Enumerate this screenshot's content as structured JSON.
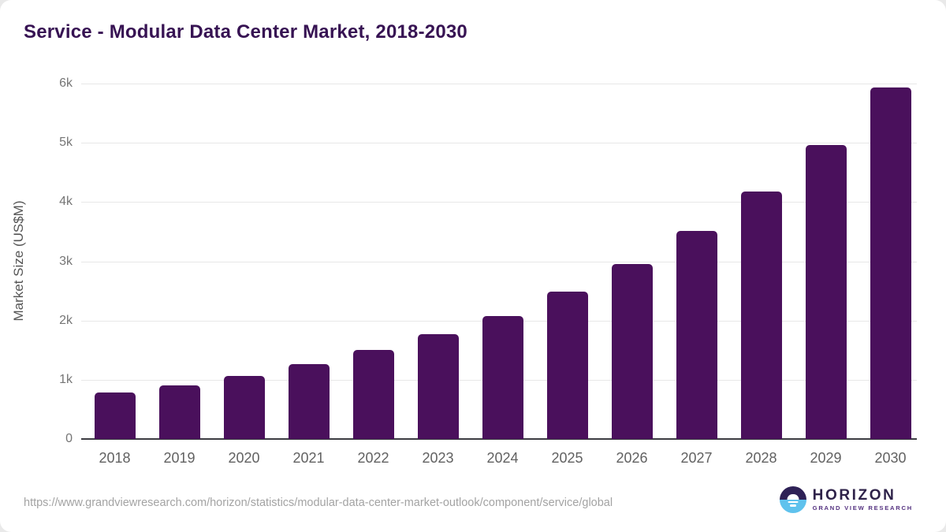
{
  "page": {
    "background": "#ffffff",
    "accent_color": "#4a105c",
    "title_color": "#371353"
  },
  "chart_data": {
    "type": "bar",
    "title": "Service - Modular Data Center Market, 2018-2030",
    "xlabel": "",
    "ylabel": "Market Size (US$M)",
    "categories": [
      "2018",
      "2019",
      "2020",
      "2021",
      "2022",
      "2023",
      "2024",
      "2025",
      "2026",
      "2027",
      "2028",
      "2029",
      "2030"
    ],
    "values": [
      780,
      900,
      1060,
      1260,
      1500,
      1770,
      2080,
      2490,
      2950,
      3510,
      4180,
      4960,
      5930
    ],
    "ylim": [
      0,
      6000
    ],
    "ytick_interval": 1000,
    "yticks": [
      {
        "value": 0,
        "label": "0"
      },
      {
        "value": 1000,
        "label": "1k"
      },
      {
        "value": 2000,
        "label": "2k"
      },
      {
        "value": 3000,
        "label": "3k"
      },
      {
        "value": 4000,
        "label": "4k"
      },
      {
        "value": 5000,
        "label": "5k"
      },
      {
        "value": 6000,
        "label": "6k"
      }
    ],
    "grid": true,
    "legend_position": "none",
    "bar_color": "#4a105c"
  },
  "footer": {
    "url": "https://www.grandviewresearch.com/horizon/statistics/modular-data-center-market-outlook/component/service/global",
    "logo": {
      "name": "HORIZON",
      "subtitle": "GRAND VIEW RESEARCH",
      "icon": "horizon-sun-over-water-icon",
      "icon_top_color": "#2e2156",
      "icon_bottom_color": "#5fc2ed"
    }
  }
}
